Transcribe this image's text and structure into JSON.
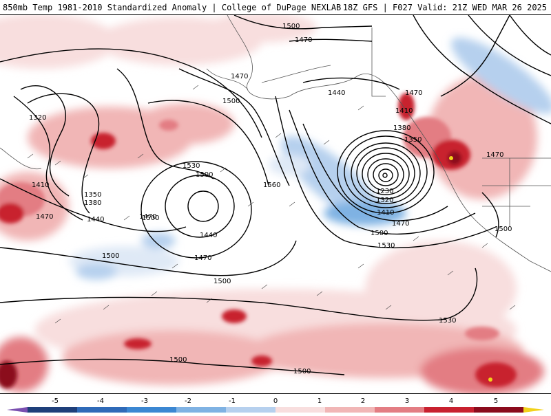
{
  "header": {
    "title": "850mb Temp 1981-2010 Standardized Anomaly | College of DuPage NEXLAB",
    "valid": "18Z GFS | F027 Valid: 21Z WED MAR 26 2025"
  },
  "colors": {
    "background": "#ffffff",
    "contour": "#000000",
    "coastline": "#555555",
    "warm_1": "#f8dede",
    "warm_2": "#f1b6b6",
    "warm_3": "#e37d83",
    "warm_4": "#c8202f",
    "warm_5": "#8b0a1c",
    "warm_extreme": "#f2d21a",
    "cold_1": "#dfe9f6",
    "cold_2": "#b6d0ee",
    "cold_3": "#7fb2e3",
    "cold_4": "#3b87d2",
    "cold_5": "#1e3f7a"
  },
  "contour_labels": [
    "1500",
    "1470",
    "1320",
    "1470",
    "1440",
    "1470",
    "1500",
    "1410",
    "1380",
    "1350",
    "1530",
    "1500",
    "1560",
    "1410",
    "1350",
    "1380",
    "1440",
    "1470",
    "1500",
    "1500",
    "1440",
    "1470",
    "1500",
    "1230",
    "1320",
    "1410",
    "1470",
    "1500",
    "1530",
    "1470",
    "1500",
    "1530",
    "1500",
    "1500",
    "1470"
  ],
  "colorbar": {
    "labels": [
      "-5",
      "-4",
      "-3",
      "-2",
      "-1",
      "0",
      "1",
      "2",
      "3",
      "4",
      "5"
    ]
  }
}
